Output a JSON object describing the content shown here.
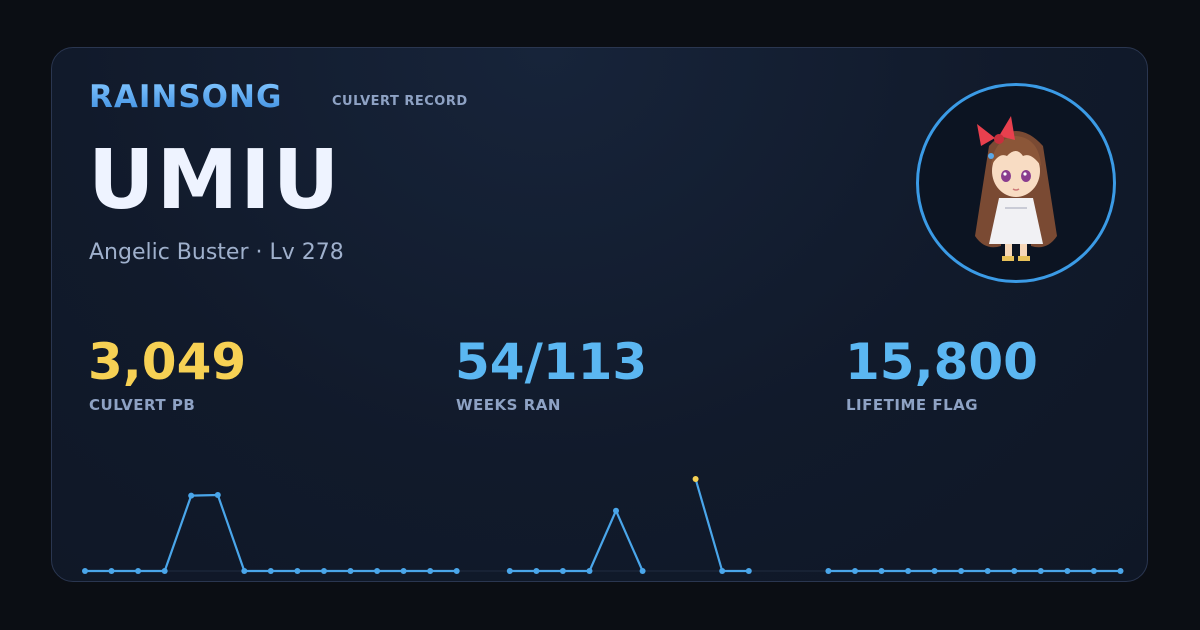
{
  "header": {
    "brand": "RAINSONG",
    "subtitle": "CULVERT RECORD"
  },
  "player": {
    "name": "UMIU",
    "class_level": "Angelic Buster · Lv 278"
  },
  "stats": [
    {
      "value": "3,049",
      "label": "CULVERT PB",
      "color": "#f7d154"
    },
    {
      "value": "54/113",
      "label": "WEEKS RAN",
      "color": "#5bb7f2"
    },
    {
      "value": "15,800",
      "label": "LIFETIME FLAG",
      "color": "#5bb7f2"
    }
  ],
  "colors": {
    "accent": "#4aa6ea",
    "highlight": "#f7d154",
    "text_primary": "#eef3ff",
    "text_secondary": "#8ea2c4"
  },
  "icons": {
    "avatar": "character-avatar-icon"
  },
  "chart_data": {
    "type": "line",
    "segments": [
      {
        "values": [
          0,
          0,
          0,
          0,
          2500,
          2520,
          0,
          0,
          0,
          0,
          0,
          0,
          0,
          0,
          0
        ]
      },
      {
        "values": [
          0,
          0,
          0,
          0,
          2000,
          0
        ]
      },
      {
        "values": [
          3049,
          0,
          0
        ]
      },
      {
        "values": [
          0,
          0,
          0,
          0,
          0,
          0,
          0,
          0,
          0,
          0,
          0,
          0
        ]
      }
    ],
    "highlight_value": 3049,
    "ylim": [
      0,
      3049
    ],
    "grid": false,
    "legend": "none"
  }
}
